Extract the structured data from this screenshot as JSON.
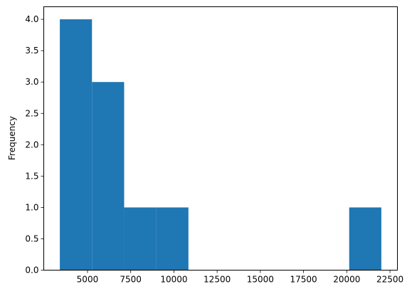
{
  "chart_data": {
    "type": "bar",
    "subtype": "histogram",
    "title": "",
    "xlabel": "",
    "ylabel": "Frequency",
    "bin_edges": [
      3400,
      5260,
      7120,
      8980,
      10840,
      12700,
      14560,
      16420,
      18280,
      20140,
      22000
    ],
    "values": [
      4,
      3,
      1,
      1,
      0,
      0,
      0,
      0,
      0,
      1
    ],
    "xlim": [
      2470,
      22930
    ],
    "ylim": [
      0,
      4.2
    ],
    "x_ticks": [
      5000,
      7500,
      10000,
      12500,
      15000,
      17500,
      20000,
      22500
    ],
    "x_tick_labels": [
      "5000",
      "7500",
      "10000",
      "12500",
      "15000",
      "17500",
      "20000",
      "22500"
    ],
    "y_ticks": [
      0,
      0.5,
      1,
      1.5,
      2,
      2.5,
      3,
      3.5,
      4
    ],
    "y_tick_labels": [
      "0.0",
      "0.5",
      "1.0",
      "1.5",
      "2.0",
      "2.5",
      "3.0",
      "3.5",
      "4.0"
    ],
    "grid": false,
    "legend": "none",
    "bar_color": "#1f77b4"
  }
}
